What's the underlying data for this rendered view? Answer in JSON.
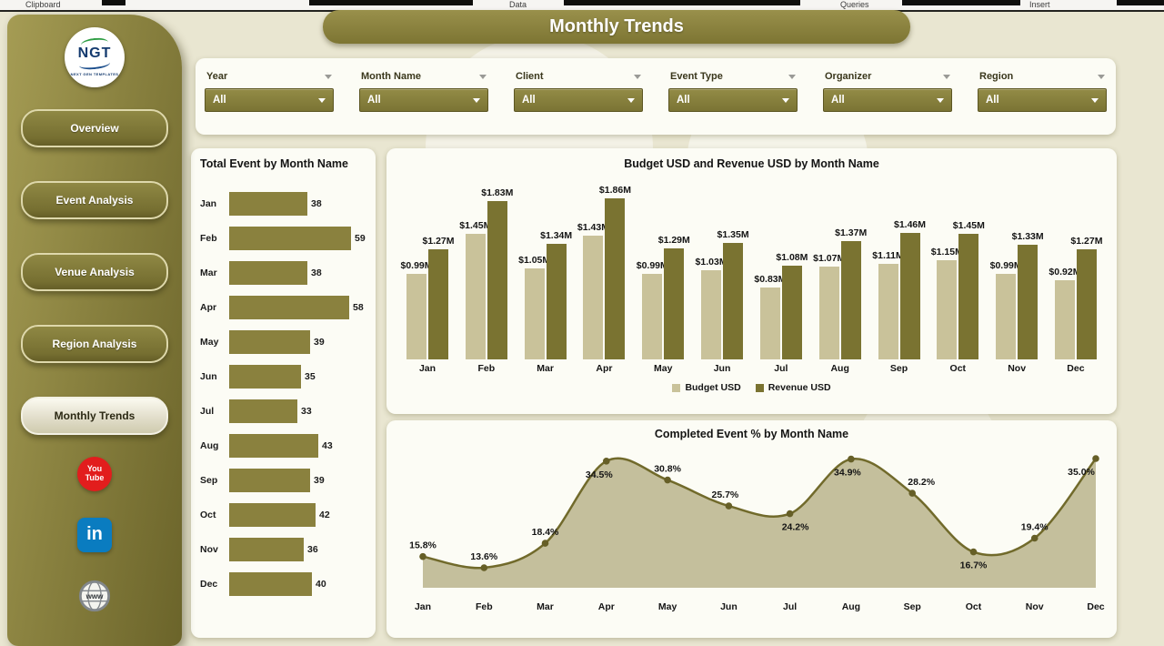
{
  "ribbon": {
    "items": [
      "Clipboard",
      "Data",
      "Queries",
      "Insert"
    ]
  },
  "page_title": "Monthly Trends",
  "sidebar": {
    "logo": {
      "text": "NGT",
      "subtext": "NEXT GEN TEMPLATES"
    },
    "items": [
      {
        "label": "Overview",
        "active": false
      },
      {
        "label": "Event Analysis",
        "active": false
      },
      {
        "label": "Venue Analysis",
        "active": false
      },
      {
        "label": "Region Analysis",
        "active": false
      },
      {
        "label": "Monthly Trends",
        "active": true
      }
    ],
    "social": {
      "youtube_line1": "You",
      "youtube_line2": "Tube",
      "linkedin_text": "in",
      "website_text": "www"
    }
  },
  "filters": [
    {
      "label": "Year",
      "value": "All"
    },
    {
      "label": "Month Name",
      "value": "All"
    },
    {
      "label": "Client",
      "value": "All"
    },
    {
      "label": "Event Type",
      "value": "All"
    },
    {
      "label": "Organizer",
      "value": "All"
    },
    {
      "label": "Region",
      "value": "All"
    }
  ],
  "chart_data": [
    {
      "type": "bar",
      "orientation": "horizontal",
      "title": "Total Event by Month Name",
      "categories": [
        "Jan",
        "Feb",
        "Mar",
        "Apr",
        "May",
        "Jun",
        "Jul",
        "Aug",
        "Sep",
        "Oct",
        "Nov",
        "Dec"
      ],
      "values": [
        38,
        59,
        38,
        58,
        39,
        35,
        33,
        43,
        39,
        42,
        36,
        40
      ],
      "bar_color": "#8a813e",
      "xlim": [
        0,
        59
      ],
      "grid": false
    },
    {
      "type": "bar",
      "title": "Budget USD and Revenue USD by Month Name",
      "categories": [
        "Jan",
        "Feb",
        "Mar",
        "Apr",
        "May",
        "Jun",
        "Jul",
        "Aug",
        "Sep",
        "Oct",
        "Nov",
        "Dec"
      ],
      "series": [
        {
          "name": "Budget USD",
          "color": "#c9c29a",
          "values": [
            0.99,
            1.45,
            1.05,
            1.43,
            0.99,
            1.03,
            0.83,
            1.07,
            1.11,
            1.15,
            0.99,
            0.92
          ],
          "labels": [
            "$0.99M",
            "$1.45M",
            "$1.05M",
            "$1.43M",
            "$0.99M",
            "$1.03M",
            "$0.83M",
            "$1.07M",
            "$1.11M",
            "$1.15M",
            "$0.99M",
            "$0.92M"
          ]
        },
        {
          "name": "Revenue USD",
          "color": "#7a7331",
          "values": [
            1.27,
            1.83,
            1.34,
            1.86,
            1.29,
            1.35,
            1.08,
            1.37,
            1.46,
            1.45,
            1.33,
            1.27
          ],
          "labels": [
            "$1.27M",
            "$1.83M",
            "$1.34M",
            "$1.86M",
            "$1.29M",
            "$1.35M",
            "$1.08M",
            "$1.37M",
            "$1.46M",
            "$1.45M",
            "$1.33M",
            "$1.27M"
          ]
        }
      ],
      "ylim": [
        0,
        2.0
      ],
      "legend_position": "bottom",
      "grid": false
    },
    {
      "type": "area",
      "title": "Completed Event % by Month Name",
      "categories": [
        "Jan",
        "Feb",
        "Mar",
        "Apr",
        "May",
        "Jun",
        "Jul",
        "Aug",
        "Sep",
        "Oct",
        "Nov",
        "Dec"
      ],
      "values": [
        15.8,
        13.6,
        18.4,
        34.5,
        30.8,
        25.7,
        24.2,
        34.9,
        28.2,
        16.7,
        19.4,
        35.0
      ],
      "labels": [
        "15.8%",
        "13.6%",
        "18.4%",
        "34.5%",
        "30.8%",
        "25.7%",
        "24.2%",
        "34.9%",
        "28.2%",
        "16.7%",
        "19.4%",
        "35.0%"
      ],
      "label_side": [
        "above",
        "above",
        "above",
        "below",
        "above",
        "above",
        "below",
        "below",
        "above",
        "below",
        "above",
        "below"
      ],
      "label_dx": [
        0,
        0,
        0,
        -8,
        0,
        -4,
        6,
        -4,
        10,
        0,
        0,
        -16
      ],
      "line_color": "#716a2b",
      "fill_color": "#b2ab7d",
      "point_color": "#665f27",
      "grid": false
    }
  ],
  "colors": {
    "page_bg": "#e9e6d1",
    "panel_bg": "#fcfcf5",
    "olive": "#8a8240",
    "olive_dark": "#6f672c",
    "budget": "#c9c29a",
    "revenue": "#7a7331"
  }
}
